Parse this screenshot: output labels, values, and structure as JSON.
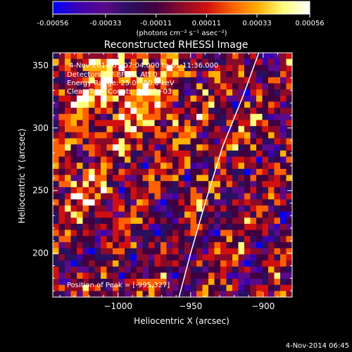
{
  "colorbar": {
    "ticks": [
      "-0.00056",
      "-0.00033",
      "-0.00011",
      "0.00011",
      "0.00033",
      "0.00056"
    ],
    "tick_values": [
      -0.00056,
      -0.00033,
      -0.00011,
      0.00011,
      0.00033,
      0.00056
    ],
    "unit_label": "(photons cm⁻² s⁻¹ asec⁻²)",
    "colormap": [
      "#0000ff",
      "#3d00b0",
      "#5a0a8a",
      "#2a1060",
      "#400040",
      "#8a0a2a",
      "#d01010",
      "#ff6000",
      "#ffb000",
      "#ffff80",
      "#ffffff"
    ]
  },
  "chart_data": {
    "type": "heatmap",
    "title": "Reconstructed RHESSI Image",
    "xlabel": "Heliocentric X (arcsec)",
    "ylabel": "Heliocentric Y (arcsec)",
    "xlim": [
      -1045,
      -880
    ],
    "ylim": [
      165,
      360
    ],
    "x_ticks": [
      -1000,
      -950,
      -900
    ],
    "x_tick_labels": [
      "−1000",
      "−950",
      "−900"
    ],
    "y_ticks": [
      200,
      250,
      300,
      350
    ],
    "y_tick_labels": [
      "200",
      "250",
      "300",
      "350"
    ],
    "annotations": [
      "4-Nov-2014 01:07:04.000 to 01:11:36.000",
      "Detectors: 3F 8F 9F, Att 0",
      "Energy Range: 25.0 - 50.0 keV",
      "Clean   Total Counts: 2.49E+03"
    ],
    "peak_label": "Position of Peak = [-995,327]",
    "peak": [
      -995,
      327
    ],
    "limb": [
      [
        -958,
        165
      ],
      [
        -950,
        200
      ],
      [
        -940,
        240
      ],
      [
        -928,
        285
      ],
      [
        -914,
        325
      ],
      [
        -903,
        360
      ]
    ]
  },
  "timestamp": "4-Nov-2014 06:45"
}
